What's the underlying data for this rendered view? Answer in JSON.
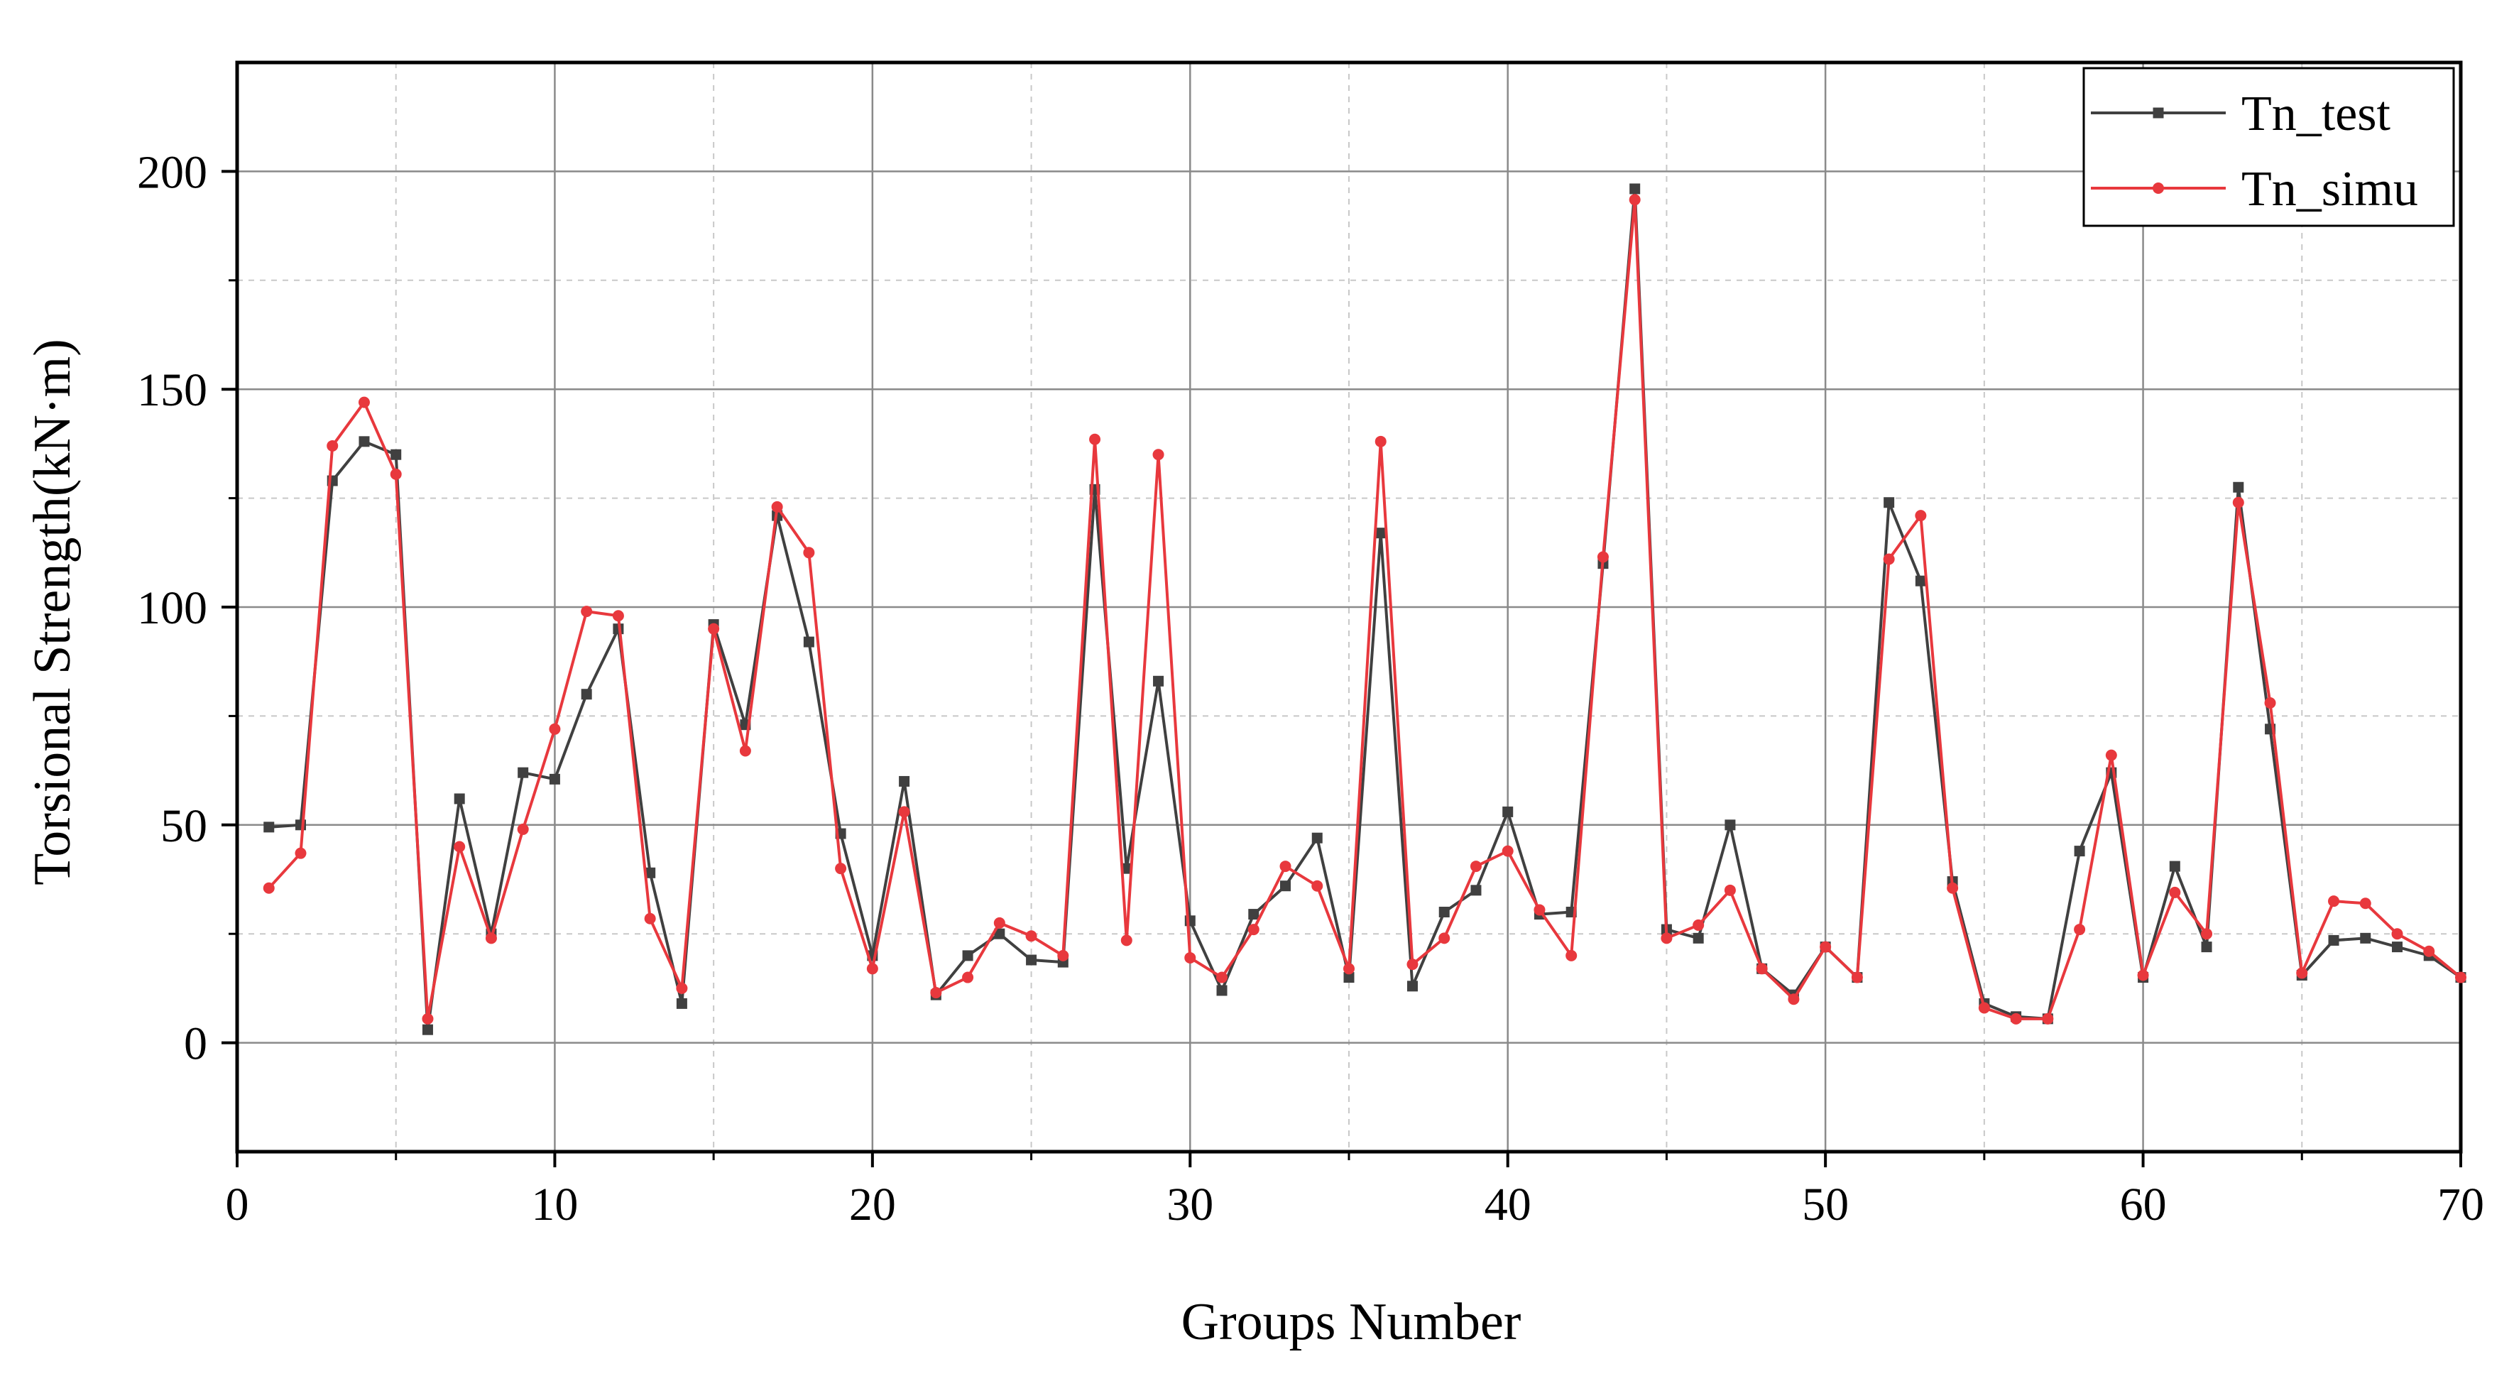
{
  "chart_data": {
    "type": "line",
    "xlabel": "Groups Number",
    "ylabel": "Torsional Strength(kN·m)",
    "xlim": [
      0,
      70
    ],
    "ylim": [
      -25,
      225
    ],
    "x_ticks": [
      0,
      10,
      20,
      30,
      40,
      50,
      60,
      70
    ],
    "y_ticks": [
      0,
      50,
      100,
      150,
      200
    ],
    "grid": true,
    "legend_position": "top-right",
    "x": [
      1,
      2,
      3,
      4,
      5,
      6,
      7,
      8,
      9,
      10,
      11,
      12,
      13,
      14,
      15,
      16,
      17,
      18,
      19,
      20,
      21,
      22,
      23,
      24,
      25,
      26,
      27,
      28,
      29,
      30,
      31,
      32,
      33,
      34,
      35,
      36,
      37,
      38,
      39,
      40,
      41,
      42,
      43,
      44,
      45,
      46,
      47,
      48,
      49,
      50,
      51,
      52,
      53,
      54,
      55,
      56,
      57,
      58,
      59,
      60,
      61,
      62,
      63,
      64,
      65,
      66,
      67,
      68,
      69,
      70
    ],
    "series": [
      {
        "name": "Tn_test",
        "color": "#404040",
        "marker": "square",
        "values": [
          49.5,
          50,
          129,
          138,
          135,
          3,
          56,
          25,
          62,
          60.5,
          80,
          95,
          39,
          9,
          96,
          73,
          121,
          92,
          48,
          20,
          60,
          11,
          20,
          25,
          19,
          18.5,
          127,
          40,
          83,
          28,
          12,
          29.5,
          36,
          47,
          15,
          117,
          13,
          30,
          35,
          53,
          29.5,
          30,
          110,
          196,
          26,
          24,
          50,
          17,
          11,
          22,
          15,
          124,
          106,
          37,
          9,
          6,
          5.5,
          44,
          62,
          15,
          40.5,
          22,
          127.5,
          72,
          15.5,
          23.5,
          24,
          22,
          20,
          15
        ]
      },
      {
        "name": "Tn_simu",
        "color": "#e8383d",
        "marker": "circle",
        "values": [
          35.5,
          43.5,
          137,
          147,
          130.5,
          5.5,
          45,
          24,
          49,
          72,
          99,
          98,
          28.5,
          12.5,
          95,
          67,
          123,
          112.5,
          40,
          17,
          53,
          11.5,
          15,
          27.5,
          24.5,
          20,
          138.5,
          23.5,
          135,
          19.5,
          15,
          26,
          40.5,
          36,
          17,
          138,
          18,
          24,
          40.5,
          44,
          30.5,
          20,
          111.5,
          193.5,
          24,
          27,
          35,
          17,
          10,
          22,
          15,
          111,
          121,
          35.5,
          8,
          5.5,
          5.5,
          26,
          66,
          15.5,
          34.5,
          25,
          124,
          78,
          16,
          32.5,
          32,
          25,
          21,
          15
        ]
      }
    ]
  }
}
